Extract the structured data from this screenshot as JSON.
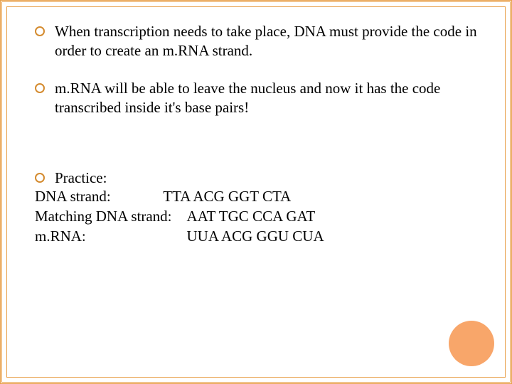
{
  "slide": {
    "border_color": "#e8a04a",
    "background_color": "#ffffff",
    "text_color": "#000000",
    "bullet_border_color": "#d48b2f",
    "accent_circle_color": "#f8a66a",
    "font_family": "Times New Roman",
    "body_fontsize_pt": 16
  },
  "bullets": [
    {
      "text": "When transcription needs to take place, DNA must provide the code in order to create an m.RNA strand."
    },
    {
      "text": "m.RNA will be able to leave the nucleus and now it has the code transcribed inside it's base pairs!"
    }
  ],
  "practice": {
    "heading": "Practice:",
    "lines": [
      {
        "label": "DNA strand:",
        "seq": "TTA   ACG  GGT  CTA"
      },
      {
        "label": "Matching DNA strand:",
        "seq": "AAT   TGC  CCA  GAT"
      },
      {
        "label": "m.RNA:",
        "seq": "UUA  ACG  GGU CUA"
      }
    ]
  }
}
